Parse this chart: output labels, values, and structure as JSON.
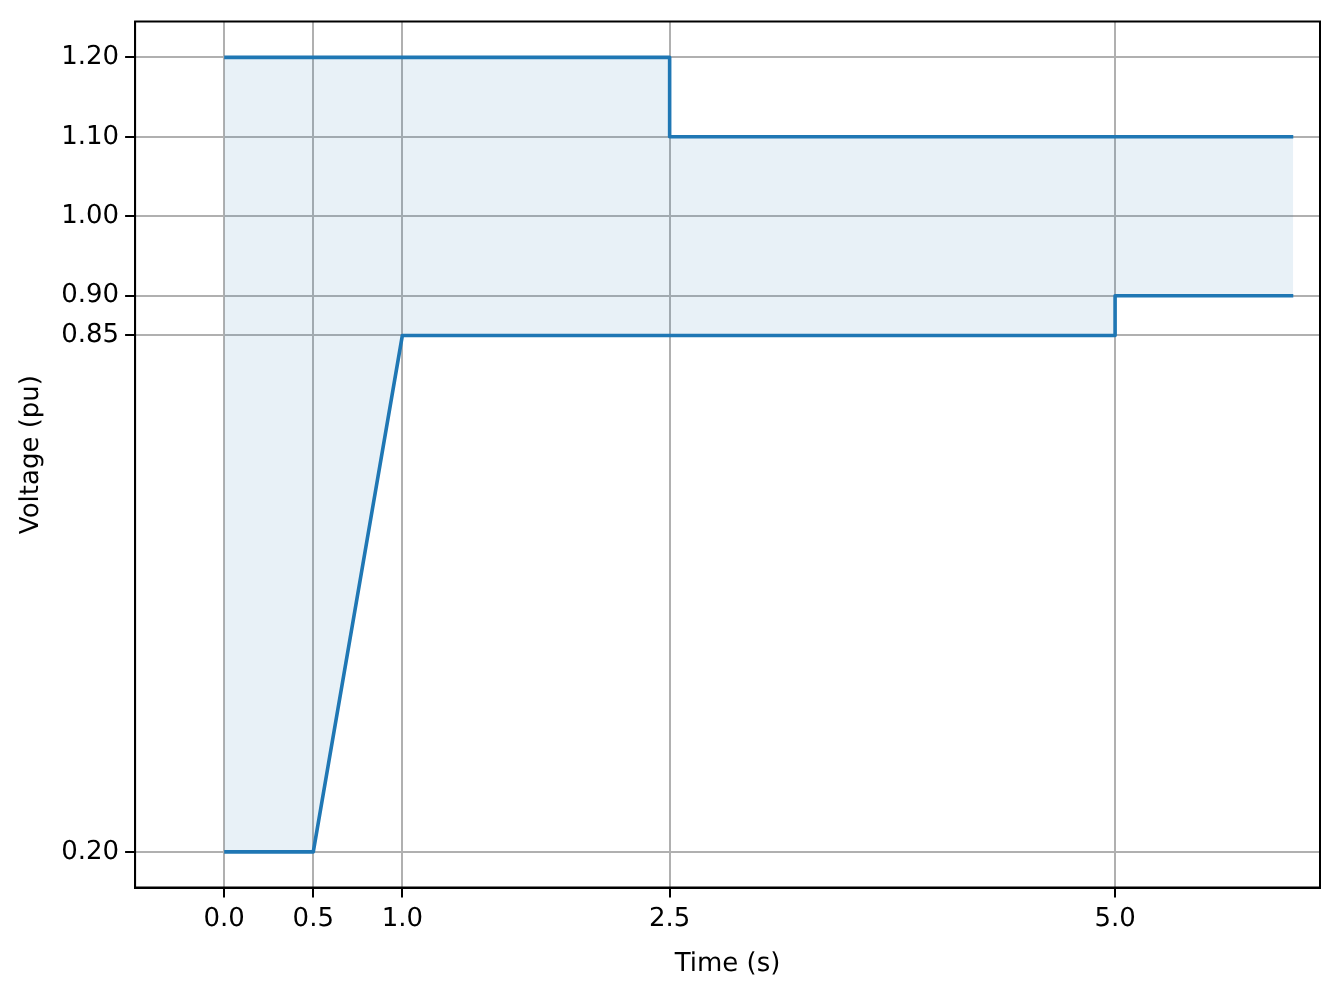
{
  "chart_data": {
    "type": "line",
    "xlabel": "Time (s)",
    "ylabel": "Voltage (pu)",
    "x": [
      0,
      0.5,
      1.0,
      2.5,
      2.5,
      5.0,
      5.0,
      6.0
    ],
    "series": [
      {
        "color": "#1f77b4",
        "values": [
          1.2,
          1.2,
          1.2,
          1.2,
          1.1,
          1.1,
          1.1,
          1.1
        ],
        "lower": [
          0.2,
          0.2,
          0.85,
          0.85,
          0.85,
          0.85,
          0.9,
          0.9
        ],
        "upper": [
          1.2,
          1.2,
          1.2,
          1.2,
          1.1,
          1.1,
          1.1,
          1.1
        ]
      },
      {
        "color": "#1f77b4",
        "values": [
          0.2,
          0.2,
          0.85,
          0.85,
          0.85,
          0.85,
          0.9,
          0.9
        ]
      }
    ],
    "xlim": [
      -0.5,
      6.15
    ],
    "ylim": [
      0.155,
      1.245
    ],
    "xticks": [
      {
        "value": 0,
        "label": "0.0"
      },
      {
        "value": 0.5,
        "label": "0.5"
      },
      {
        "value": 1,
        "label": "1.0"
      },
      {
        "value": 2.5,
        "label": "2.5"
      },
      {
        "value": 5,
        "label": "5.0"
      }
    ],
    "yticks": [
      {
        "value": 0.2,
        "label": "0.20"
      },
      {
        "value": 0.85,
        "label": "0.85"
      },
      {
        "value": 0.9,
        "label": "0.90"
      },
      {
        "value": 1.0,
        "label": "1.00"
      },
      {
        "value": 1.1,
        "label": "1.10"
      },
      {
        "value": 1.2,
        "label": "1.20"
      }
    ],
    "grid": true,
    "legend": false,
    "marker": "none",
    "line_style": "solid"
  }
}
